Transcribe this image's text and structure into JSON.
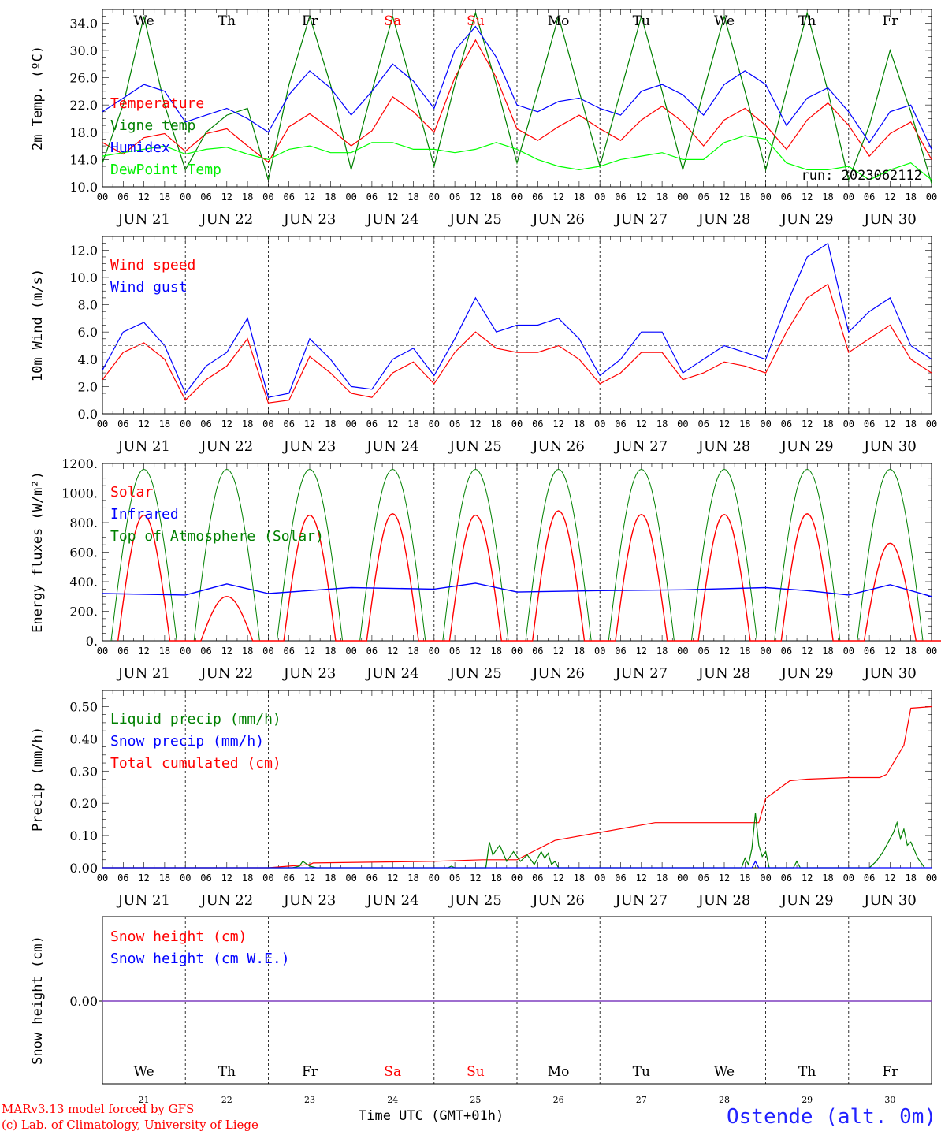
{
  "chart_data": [
    {
      "type": "line",
      "ylabel": "2m Temp. (ºC)",
      "ylim": [
        10,
        36
      ],
      "yticks": [
        "10.0",
        "14.0",
        "18.0",
        "22.0",
        "26.0",
        "30.0",
        "34.0"
      ],
      "legend": [
        "Temperature",
        "Vigne temp",
        "Humidex",
        "DewPoint Temp"
      ],
      "annotation": "run: 2023062112",
      "series": [
        {
          "name": "Temperature",
          "color": "#ff0000",
          "x": [
            0,
            6,
            12,
            18,
            24,
            30,
            36,
            42,
            48,
            54,
            60,
            66,
            72,
            78,
            84,
            90,
            96,
            102,
            108,
            114,
            120,
            126,
            132,
            138,
            144,
            150,
            156,
            162,
            168,
            174,
            180,
            186,
            192,
            198,
            204,
            210,
            216,
            222,
            228,
            234,
            240
          ],
          "values": [
            16.5,
            14.8,
            17.2,
            17.8,
            15.2,
            17.8,
            18.5,
            16.0,
            13.6,
            18.8,
            20.7,
            18.5,
            16.0,
            18.2,
            23.2,
            21.0,
            18.0,
            26.0,
            31.5,
            26.0,
            18.5,
            16.8,
            18.8,
            20.5,
            18.5,
            16.8,
            19.8,
            21.8,
            19.5,
            16.0,
            19.8,
            21.5,
            19.0,
            15.5,
            19.8,
            22.3,
            19.0,
            14.5,
            17.8,
            19.5,
            14.0
          ]
        },
        {
          "name": "Vigne temp",
          "color": "#008000",
          "x": [
            0,
            6,
            12,
            18,
            24,
            30,
            36,
            42,
            48,
            54,
            60,
            66,
            72,
            78,
            84,
            90,
            96,
            102,
            108,
            114,
            120,
            126,
            132,
            138,
            144,
            150,
            156,
            162,
            168,
            174,
            180,
            186,
            192,
            198,
            204,
            210,
            216,
            222,
            228,
            234,
            240
          ],
          "values": [
            13.5,
            22.0,
            35.0,
            22.0,
            12.5,
            18.0,
            20.5,
            21.5,
            11.0,
            25.0,
            35.0,
            25.0,
            12.5,
            24.0,
            35.0,
            24.0,
            13.0,
            25.0,
            35.5,
            25.0,
            13.5,
            24.0,
            35.0,
            24.0,
            13.0,
            24.0,
            35.0,
            24.0,
            12.5,
            24.0,
            35.0,
            24.0,
            12.5,
            24.0,
            35.5,
            24.0,
            11.0,
            19.0,
            30.0,
            21.0,
            10.5
          ]
        },
        {
          "name": "Humidex",
          "color": "#0000ff",
          "x": [
            0,
            6,
            12,
            18,
            24,
            30,
            36,
            42,
            48,
            54,
            60,
            66,
            72,
            78,
            84,
            90,
            96,
            102,
            108,
            114,
            120,
            126,
            132,
            138,
            144,
            150,
            156,
            162,
            168,
            174,
            180,
            186,
            192,
            198,
            204,
            210,
            216,
            222,
            228,
            234,
            240
          ],
          "values": [
            21.0,
            23.0,
            25.0,
            24.0,
            19.5,
            20.5,
            21.5,
            20.0,
            18.0,
            23.5,
            27.0,
            24.5,
            20.5,
            24.0,
            28.0,
            25.5,
            21.5,
            30.0,
            33.5,
            29.0,
            22.0,
            21.0,
            22.5,
            23.0,
            21.5,
            20.5,
            24.0,
            25.0,
            23.5,
            20.5,
            25.0,
            27.0,
            25.0,
            19.0,
            23.0,
            24.5,
            21.0,
            16.5,
            21.0,
            22.0,
            15.5
          ]
        },
        {
          "name": "DewPoint Temp",
          "color": "#00ff00",
          "x": [
            0,
            6,
            12,
            18,
            24,
            30,
            36,
            42,
            48,
            54,
            60,
            66,
            72,
            78,
            84,
            90,
            96,
            102,
            108,
            114,
            120,
            126,
            132,
            138,
            144,
            150,
            156,
            162,
            168,
            174,
            180,
            186,
            192,
            198,
            204,
            210,
            216,
            222,
            228,
            234,
            240
          ],
          "values": [
            14.5,
            15.0,
            15.5,
            16.0,
            14.8,
            15.5,
            15.8,
            14.8,
            14.0,
            15.5,
            16.0,
            15.0,
            15.0,
            16.5,
            16.5,
            15.5,
            15.5,
            15.0,
            15.5,
            16.5,
            15.5,
            14.0,
            13.0,
            12.5,
            13.0,
            14.0,
            14.5,
            15.0,
            14.0,
            14.0,
            16.5,
            17.5,
            17.0,
            13.5,
            12.5,
            12.5,
            13.0,
            11.0,
            12.5,
            13.5,
            11.0
          ]
        }
      ]
    },
    {
      "type": "line",
      "ylabel": "10m Wind (m/s)",
      "ylim": [
        0,
        13
      ],
      "yticks": [
        "0.0",
        "2.0",
        "4.0",
        "6.0",
        "8.0",
        "10.0",
        "12.0"
      ],
      "reference_line": 5.0,
      "legend": [
        "Wind speed",
        "Wind gust"
      ],
      "series": [
        {
          "name": "Wind speed",
          "color": "#ff0000",
          "x": [
            0,
            6,
            12,
            18,
            24,
            30,
            36,
            42,
            48,
            54,
            60,
            66,
            72,
            78,
            84,
            90,
            96,
            102,
            108,
            114,
            120,
            126,
            132,
            138,
            144,
            150,
            156,
            162,
            168,
            174,
            180,
            186,
            192,
            198,
            204,
            210,
            216,
            222,
            228,
            234,
            240
          ],
          "values": [
            2.5,
            4.5,
            5.2,
            4.0,
            1.0,
            2.5,
            3.5,
            5.5,
            0.8,
            1.0,
            4.2,
            3.0,
            1.5,
            1.2,
            3.0,
            3.8,
            2.2,
            4.5,
            6.0,
            4.8,
            4.5,
            4.5,
            5.0,
            4.0,
            2.2,
            3.0,
            4.5,
            4.5,
            2.5,
            3.0,
            3.8,
            3.5,
            3.0,
            6.0,
            8.5,
            9.5,
            4.5,
            5.5,
            6.5,
            4.0,
            3.0
          ]
        },
        {
          "name": "Wind gust",
          "color": "#0000ff",
          "x": [
            0,
            6,
            12,
            18,
            24,
            30,
            36,
            42,
            48,
            54,
            60,
            66,
            72,
            78,
            84,
            90,
            96,
            102,
            108,
            114,
            120,
            126,
            132,
            138,
            144,
            150,
            156,
            162,
            168,
            174,
            180,
            186,
            192,
            198,
            204,
            210,
            216,
            222,
            228,
            234,
            240
          ],
          "values": [
            3.2,
            6.0,
            6.7,
            5.0,
            1.5,
            3.5,
            4.5,
            7.0,
            1.2,
            1.5,
            5.5,
            4.0,
            2.0,
            1.8,
            4.0,
            4.8,
            2.8,
            5.5,
            8.5,
            6.0,
            6.5,
            6.5,
            7.0,
            5.5,
            2.8,
            4.0,
            6.0,
            6.0,
            3.0,
            4.0,
            5.0,
            4.5,
            4.0,
            8.0,
            11.5,
            12.5,
            6.0,
            7.5,
            8.5,
            5.0,
            4.0
          ]
        }
      ]
    },
    {
      "type": "line",
      "ylabel": "Energy fluxes (W/m²)",
      "ylim": [
        0,
        1200
      ],
      "yticks": [
        "0.",
        "200.",
        "400.",
        "600.",
        "800.",
        "1000.",
        "1200."
      ],
      "legend": [
        "Solar",
        "Infrared",
        "Top of Atmosphere (Solar)"
      ],
      "series": [
        {
          "name": "Solar",
          "color": "#ff0000",
          "daily_peak": [
            850,
            300,
            850,
            860,
            850,
            880,
            855,
            855,
            860,
            660
          ]
        },
        {
          "name": "Infrared",
          "color": "#0000ff",
          "x": [
            0,
            24,
            36,
            48,
            72,
            96,
            108,
            120,
            144,
            168,
            192,
            204,
            216,
            228,
            240
          ],
          "values": [
            320,
            310,
            385,
            320,
            360,
            350,
            390,
            330,
            340,
            345,
            360,
            340,
            310,
            380,
            300
          ]
        },
        {
          "name": "Top of Atmosphere (Solar)",
          "color": "#008000",
          "daily_peak": [
            1160,
            1160,
            1160,
            1160,
            1160,
            1160,
            1160,
            1160,
            1160,
            1160
          ]
        }
      ]
    },
    {
      "type": "line",
      "ylabel": "Precip (mm/h)",
      "ylim": [
        0,
        0.55
      ],
      "yticks": [
        "0.00",
        "0.10",
        "0.20",
        "0.30",
        "0.40",
        "0.50"
      ],
      "legend": [
        "Liquid precip (mm/h)",
        "Snow precip (mm/h)",
        "Total cumulated (cm)"
      ],
      "series": [
        {
          "name": "Total cumulated (cm)",
          "color": "#ff0000",
          "x": [
            0,
            48,
            60,
            61,
            96,
            110,
            120,
            131,
            160,
            190,
            192,
            199,
            204,
            216,
            225,
            227,
            232,
            234,
            240
          ],
          "values": [
            0.0,
            0.0,
            0.01,
            0.015,
            0.02,
            0.025,
            0.025,
            0.085,
            0.14,
            0.14,
            0.215,
            0.27,
            0.275,
            0.28,
            0.28,
            0.29,
            0.38,
            0.495,
            0.5
          ]
        },
        {
          "name": "Liquid precip (mm/h)",
          "color": "#008000",
          "x": [
            0,
            55,
            57,
            58,
            60,
            62,
            100,
            101,
            102,
            111,
            112,
            113,
            115,
            117,
            119,
            121,
            123,
            125,
            127,
            128,
            129,
            130,
            131,
            132,
            185,
            186,
            187,
            188,
            189,
            190,
            191,
            192,
            193,
            200,
            201,
            202,
            222,
            224,
            226,
            228,
            229,
            230,
            231,
            232,
            233,
            234,
            236,
            238
          ],
          "values": [
            0,
            0,
            0.005,
            0.02,
            0.005,
            0,
            0,
            0.005,
            0,
            0,
            0.08,
            0.04,
            0.07,
            0.02,
            0.05,
            0.02,
            0.04,
            0.01,
            0.05,
            0.03,
            0.045,
            0.01,
            0.02,
            0,
            0,
            0.03,
            0.01,
            0.06,
            0.17,
            0.07,
            0.035,
            0.05,
            0,
            0,
            0.02,
            0,
            0,
            0.02,
            0.05,
            0.09,
            0.11,
            0.14,
            0.09,
            0.12,
            0.07,
            0.08,
            0.03,
            0
          ]
        },
        {
          "name": "Snow precip (mm/h)",
          "color": "#0000ff",
          "x": [
            0,
            188,
            189,
            190,
            240
          ],
          "values": [
            0,
            0,
            0.02,
            0,
            0
          ]
        }
      ]
    },
    {
      "type": "line",
      "ylabel": "Snow height (cm)",
      "ytick": "0.00",
      "legend": [
        "Snow height (cm)",
        "Snow height (cm W.E.)"
      ],
      "series": [
        {
          "name": "Snow height (cm)",
          "color": "#ff0000",
          "x": [
            0,
            240
          ],
          "values": [
            0,
            0
          ]
        },
        {
          "name": "Snow height (cm W.E.)",
          "color": "#0000ff",
          "x": [
            0,
            240
          ],
          "values": [
            0,
            0
          ]
        }
      ]
    }
  ],
  "x_axis": {
    "hour_labels": [
      "00",
      "06",
      "12",
      "18"
    ],
    "final_hour_label": "00",
    "dates": [
      "JUN 21",
      "JUN 22",
      "JUN 23",
      "JUN 24",
      "JUN 25",
      "JUN 26",
      "JUN 27",
      "JUN 28",
      "JUN 29",
      "JUN 30"
    ],
    "weekdays": [
      "We",
      "Th",
      "Fr",
      "Sa",
      "Su",
      "Mo",
      "Tu",
      "We",
      "Th",
      "Fr"
    ],
    "weekday_colors": [
      "#000000",
      "#000000",
      "#000000",
      "#ff0000",
      "#ff0000",
      "#000000",
      "#000000",
      "#000000",
      "#000000",
      "#000000"
    ],
    "day_numbers": [
      "21",
      "22",
      "23",
      "24",
      "25",
      "26",
      "27",
      "28",
      "29",
      "30"
    ],
    "bottom_label": "Time UTC (GMT+01h)"
  },
  "footer": {
    "credit_line1": "MARv3.13 model forced by GFS",
    "credit_line2": "(c) Lab. of Climatology, University of Liege",
    "station": "Ostende (alt. 0m)"
  }
}
